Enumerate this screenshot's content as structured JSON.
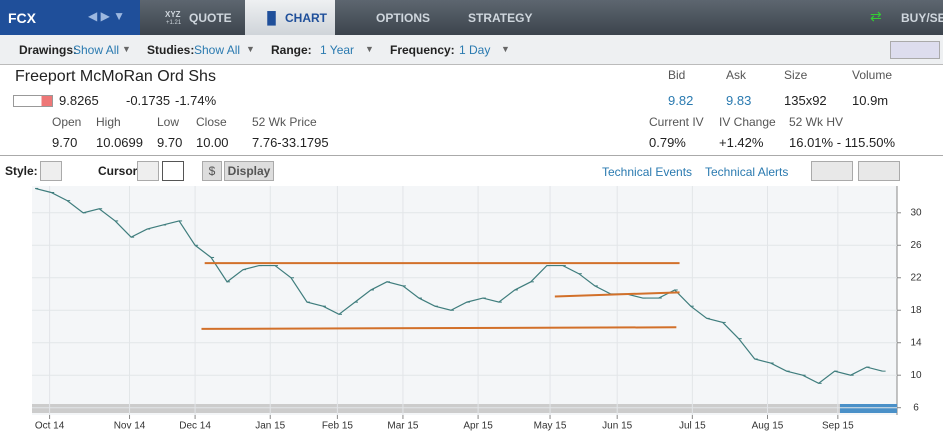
{
  "tabs": {
    "symbol": "FCX",
    "quote_icon": "XYZ",
    "quote_icon_sub": "+1.21",
    "items": [
      "QUOTE",
      "CHART",
      "OPTIONS",
      "STRATEGY"
    ],
    "buysell": "BUY/SEL"
  },
  "toolbar": {
    "drawings_label": "Drawings:",
    "drawings": "Show All",
    "studies_label": "Studies:",
    "studies": "Show All",
    "range_label": "Range:",
    "range": "1 Year",
    "frequency_label": "Frequency:",
    "frequency": "1 Day"
  },
  "quote": {
    "name": "Freeport McMoRan Ord Shs",
    "last": "9.8265",
    "change": "-0.1735",
    "change_pct": "-1.74%",
    "left_headers": [
      "Open",
      "High",
      "Low",
      "Close",
      "52 Wk Price"
    ],
    "left_values": [
      "9.70",
      "10.0699",
      "9.70",
      "10.00",
      "7.76-33.1795"
    ],
    "right_headers_1": [
      "Bid",
      "Ask",
      "Size",
      "Volume"
    ],
    "right_values_1": [
      "9.82",
      "9.83",
      "135x92",
      "10.9m"
    ],
    "right_headers_2": [
      "Current IV",
      "IV Change",
      "52 Wk HV"
    ],
    "right_values_2": [
      "0.79%",
      "+1.42%",
      "16.01% - 115.50%"
    ]
  },
  "chart_toolbar": {
    "style_label": "Style:",
    "cursor_label": "Cursor:",
    "dollar": "$",
    "display": "Display",
    "events": "Technical Events",
    "alerts": "Technical Alerts"
  },
  "chart_data": {
    "type": "line",
    "series": [
      {
        "color": "#3f7d7d",
        "values": [
          33,
          32.5,
          31.5,
          30,
          30.5,
          29,
          27,
          28,
          28.5,
          29,
          26,
          24.5,
          21.5,
          23,
          23.5,
          23.5,
          22,
          19,
          18.5,
          17.5,
          19,
          20.5,
          21.5,
          21,
          19.5,
          18.5,
          18,
          19,
          19.5,
          19,
          20.5,
          21.5,
          23.5,
          23.5,
          22.5,
          21,
          20,
          20,
          19.5,
          19.5,
          20.5,
          18.5,
          17,
          16.5,
          14.5,
          12,
          11.5,
          10.5,
          10,
          9,
          10.5,
          10,
          11,
          10.5
        ]
      }
    ],
    "xlim": [
      -0.2,
      53.9
    ],
    "xticks": [
      {
        "value": 0.9,
        "label": "Oct 14"
      },
      {
        "value": 5.9,
        "label": "Nov 14"
      },
      {
        "value": 10,
        "label": "Dec 14"
      },
      {
        "value": 14.7,
        "label": "Jan 15"
      },
      {
        "value": 18.9,
        "label": "Feb 15"
      },
      {
        "value": 23,
        "label": "Mar 15"
      },
      {
        "value": 27.7,
        "label": "Apr 15"
      },
      {
        "value": 32.2,
        "label": "May 15"
      },
      {
        "value": 36.4,
        "label": "Jun 15"
      },
      {
        "value": 41.1,
        "label": "Jul 15"
      },
      {
        "value": 45.8,
        "label": "Aug 15"
      },
      {
        "value": 50.2,
        "label": "Sep 15"
      }
    ],
    "ylim": [
      5.1,
      33.3
    ],
    "yticks": [
      6,
      10,
      14,
      18,
      22,
      26,
      30
    ],
    "grid": true,
    "trendlines": [
      {
        "color": "#d2702a",
        "x": [
          10.6,
          40.3
        ],
        "y": [
          23.8,
          23.8
        ]
      },
      {
        "color": "#d2702a",
        "x": [
          10.4,
          40.1
        ],
        "y": [
          15.7,
          15.9
        ]
      },
      {
        "color": "#d2702a",
        "x": [
          32.5,
          40.3
        ],
        "y": [
          19.7,
          20.2
        ]
      }
    ]
  }
}
